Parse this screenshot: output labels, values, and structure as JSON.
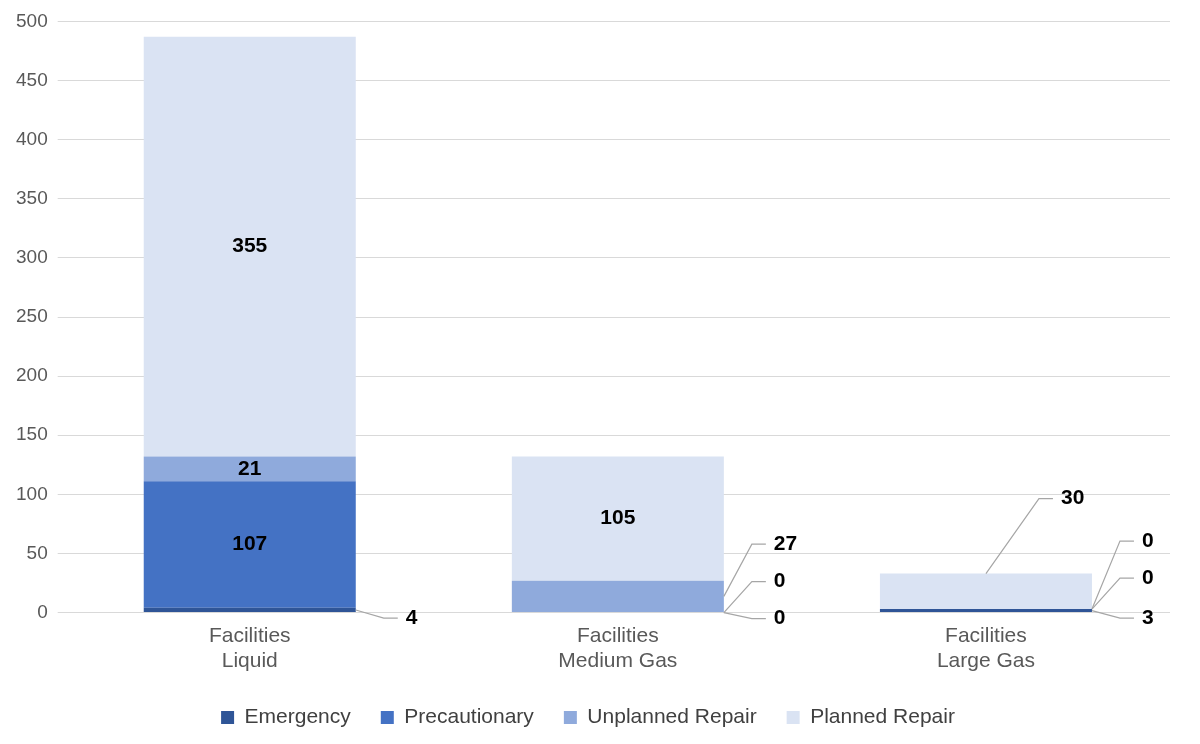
{
  "chart_data": {
    "type": "bar",
    "categories": [
      [
        "Facilities",
        "Liquid"
      ],
      [
        "Facilities",
        "Medium Gas"
      ],
      [
        "Facilities",
        "Large Gas"
      ]
    ],
    "series": [
      {
        "name": "Emergency",
        "color": "#2f5597",
        "values": [
          4,
          0,
          3
        ]
      },
      {
        "name": "Precautionary",
        "color": "#4472c4",
        "values": [
          107,
          0,
          0
        ]
      },
      {
        "name": "Unplanned Repair",
        "color": "#8faadc",
        "values": [
          21,
          27,
          0
        ]
      },
      {
        "name": "Planned Repair",
        "color": "#dae3f3",
        "values": [
          355,
          105,
          30
        ]
      }
    ],
    "ylim": [
      0,
      500
    ],
    "yticks": [
      0,
      50,
      100,
      150,
      200,
      250,
      300,
      350,
      400,
      450,
      500
    ],
    "grid": true,
    "stacked": true,
    "data_labels": true,
    "legend": "bottom"
  }
}
